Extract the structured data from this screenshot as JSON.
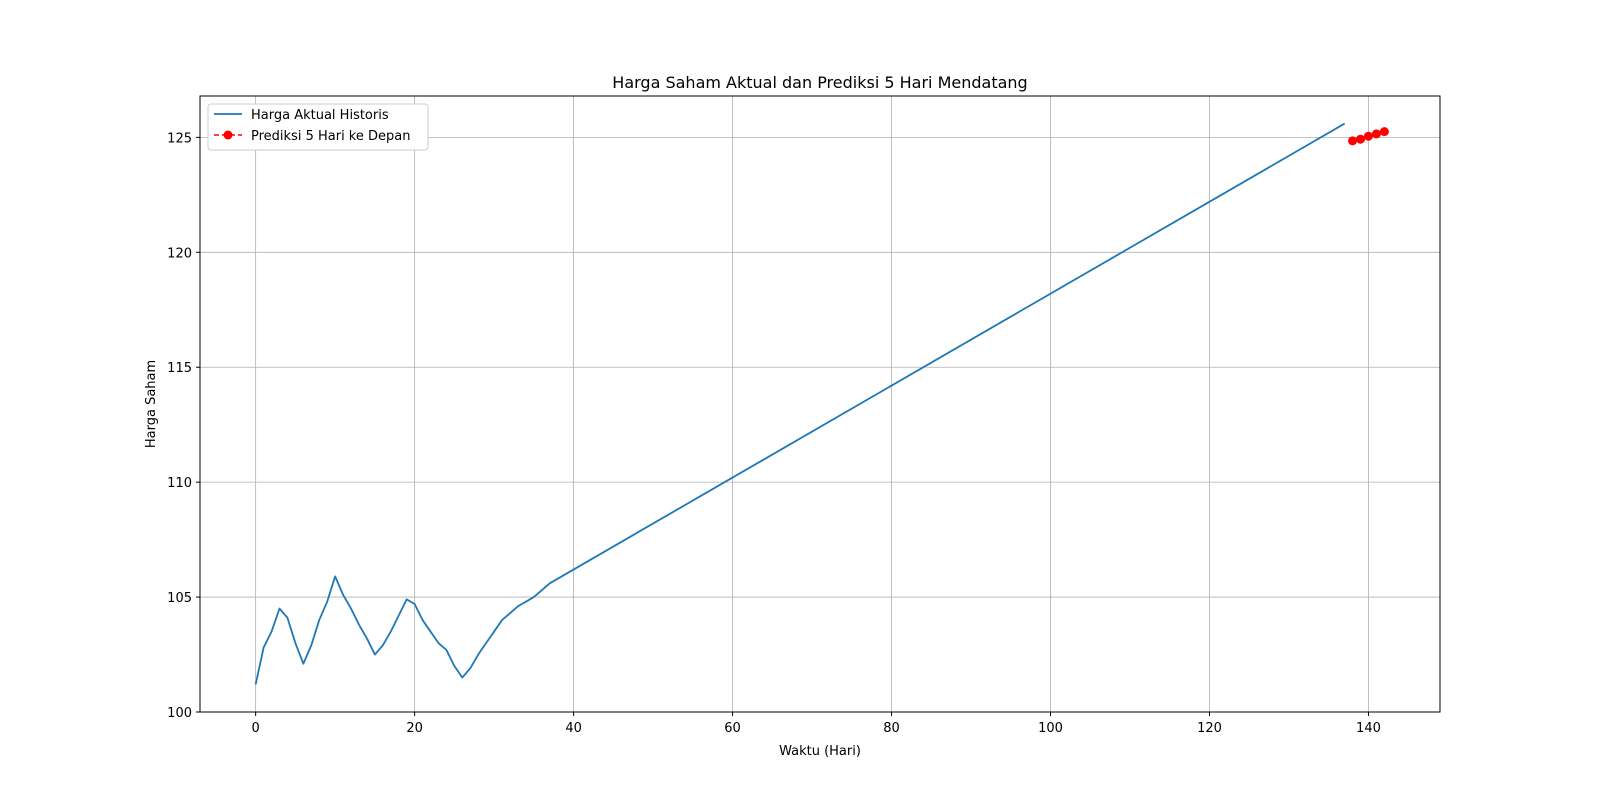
{
  "chart_data": {
    "type": "line",
    "title": "Harga Saham Aktual dan Prediksi 5 Hari Mendatang",
    "xlabel": "Waktu (Hari)",
    "ylabel": "Harga Saham",
    "xlim": [
      -7,
      149
    ],
    "ylim": [
      100,
      126.8
    ],
    "xticks": [
      0,
      20,
      40,
      60,
      80,
      100,
      120,
      140
    ],
    "yticks": [
      100,
      105,
      110,
      115,
      120,
      125
    ],
    "grid": true,
    "legend_position": "top-left",
    "series": [
      {
        "name": "Harga Aktual Historis",
        "style": "solid-line",
        "color": "#1f77b4",
        "x": [
          0,
          1,
          2,
          3,
          4,
          5,
          6,
          7,
          8,
          9,
          10,
          11,
          12,
          13,
          14,
          15,
          16,
          17,
          18,
          19,
          20,
          21,
          22,
          23,
          24,
          25,
          26,
          27,
          28,
          29,
          30,
          31,
          32,
          33,
          34,
          35,
          36,
          37,
          137
        ],
        "y": [
          101.2,
          102.8,
          103.5,
          104.5,
          104.1,
          103.0,
          102.1,
          102.9,
          104.0,
          104.8,
          105.9,
          105.1,
          104.5,
          103.8,
          103.2,
          102.5,
          102.9,
          103.5,
          104.2,
          104.9,
          104.7,
          104.0,
          103.5,
          103.0,
          102.7,
          102.0,
          101.5,
          101.9,
          102.5,
          103.0,
          103.5,
          104.0,
          104.3,
          104.6,
          104.8,
          105.0,
          105.3,
          105.6,
          125.6
        ]
      },
      {
        "name": "Prediksi 5 Hari ke Depan",
        "style": "dashed-line-with-markers",
        "color": "#ff0000",
        "x": [
          138,
          139,
          140,
          141,
          142
        ],
        "y": [
          124.85,
          124.92,
          125.05,
          125.15,
          125.25
        ]
      }
    ]
  }
}
